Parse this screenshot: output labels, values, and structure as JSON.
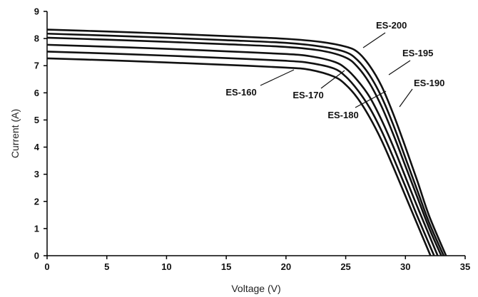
{
  "chart_data": {
    "type": "line",
    "xlabel": "Voltage (V)",
    "ylabel": "Current (A)",
    "xlim": [
      0,
      35
    ],
    "ylim": [
      0,
      9
    ],
    "x_ticks": [
      "0",
      "5",
      "10",
      "15",
      "20",
      "25",
      "30",
      "35"
    ],
    "y_ticks": [
      "0",
      "1",
      "2",
      "3",
      "4",
      "5",
      "6",
      "7",
      "8",
      "9"
    ],
    "grid": false,
    "series": [
      {
        "name": "ES-160",
        "isc": 7.27,
        "voc": 32.1,
        "knee_v": 23.5,
        "knee_i": 6.75,
        "points": [
          [
            0,
            7.27
          ],
          [
            5,
            7.2
          ],
          [
            10,
            7.12
          ],
          [
            15,
            7.03
          ],
          [
            20,
            6.93
          ],
          [
            22,
            6.85
          ],
          [
            24,
            6.6
          ],
          [
            25,
            6.3
          ],
          [
            26,
            5.8
          ],
          [
            27,
            5.1
          ],
          [
            28,
            4.25
          ],
          [
            29,
            3.25
          ],
          [
            30,
            2.2
          ],
          [
            31,
            1.15
          ],
          [
            32.1,
            0
          ]
        ]
      },
      {
        "name": "ES-170",
        "isc": 7.52,
        "voc": 32.4,
        "knee_v": 24.0,
        "knee_i": 7.0,
        "points": [
          [
            0,
            7.52
          ],
          [
            5,
            7.45
          ],
          [
            10,
            7.37
          ],
          [
            15,
            7.28
          ],
          [
            20,
            7.18
          ],
          [
            22,
            7.1
          ],
          [
            24,
            6.9
          ],
          [
            25,
            6.6
          ],
          [
            26,
            6.1
          ],
          [
            27,
            5.45
          ],
          [
            28,
            4.6
          ],
          [
            29,
            3.6
          ],
          [
            30,
            2.55
          ],
          [
            31,
            1.45
          ],
          [
            32.4,
            0
          ]
        ]
      },
      {
        "name": "ES-180",
        "isc": 7.77,
        "voc": 32.7,
        "knee_v": 24.5,
        "knee_i": 7.25,
        "points": [
          [
            0,
            7.77
          ],
          [
            5,
            7.7
          ],
          [
            10,
            7.62
          ],
          [
            15,
            7.53
          ],
          [
            20,
            7.43
          ],
          [
            22,
            7.35
          ],
          [
            24,
            7.15
          ],
          [
            25,
            6.9
          ],
          [
            26,
            6.45
          ],
          [
            27,
            5.85
          ],
          [
            28,
            5.0
          ],
          [
            29,
            4.0
          ],
          [
            30,
            2.9
          ],
          [
            31,
            1.8
          ],
          [
            32.7,
            0
          ]
        ]
      },
      {
        "name": "ES-190",
        "isc": 8.03,
        "voc": 33.0,
        "knee_v": 25.0,
        "knee_i": 7.5,
        "points": [
          [
            0,
            8.03
          ],
          [
            5,
            7.96
          ],
          [
            10,
            7.88
          ],
          [
            15,
            7.79
          ],
          [
            20,
            7.69
          ],
          [
            23,
            7.55
          ],
          [
            25,
            7.3
          ],
          [
            26,
            6.95
          ],
          [
            27,
            6.35
          ],
          [
            28,
            5.5
          ],
          [
            29,
            4.45
          ],
          [
            30,
            3.3
          ],
          [
            31,
            2.15
          ],
          [
            32,
            1.0
          ],
          [
            33.0,
            0
          ]
        ]
      },
      {
        "name": "ES-195",
        "isc": 8.18,
        "voc": 33.2,
        "knee_v": 25.5,
        "knee_i": 7.6,
        "points": [
          [
            0,
            8.18
          ],
          [
            5,
            8.11
          ],
          [
            10,
            8.03
          ],
          [
            15,
            7.94
          ],
          [
            20,
            7.84
          ],
          [
            23,
            7.7
          ],
          [
            25,
            7.5
          ],
          [
            26,
            7.2
          ],
          [
            27,
            6.65
          ],
          [
            28,
            5.85
          ],
          [
            29,
            4.8
          ],
          [
            30,
            3.6
          ],
          [
            31,
            2.4
          ],
          [
            32,
            1.2
          ],
          [
            33.2,
            0
          ]
        ]
      },
      {
        "name": "ES-200",
        "isc": 8.33,
        "voc": 33.4,
        "knee_v": 26.0,
        "knee_i": 7.7,
        "points": [
          [
            0,
            8.33
          ],
          [
            5,
            8.26
          ],
          [
            10,
            8.18
          ],
          [
            15,
            8.09
          ],
          [
            20,
            7.99
          ],
          [
            23,
            7.87
          ],
          [
            25,
            7.7
          ],
          [
            26,
            7.5
          ],
          [
            27,
            7.0
          ],
          [
            28,
            6.25
          ],
          [
            29,
            5.2
          ],
          [
            30,
            4.0
          ],
          [
            31,
            2.75
          ],
          [
            32,
            1.45
          ],
          [
            33.4,
            0
          ]
        ]
      }
    ],
    "annotations": [
      {
        "text": "ES-160",
        "series": "ES-160"
      },
      {
        "text": "ES-170",
        "series": "ES-170"
      },
      {
        "text": "ES-180",
        "series": "ES-180"
      },
      {
        "text": "ES-190",
        "series": "ES-190"
      },
      {
        "text": "ES-195",
        "series": "ES-195"
      },
      {
        "text": "ES-200",
        "series": "ES-200"
      }
    ]
  }
}
